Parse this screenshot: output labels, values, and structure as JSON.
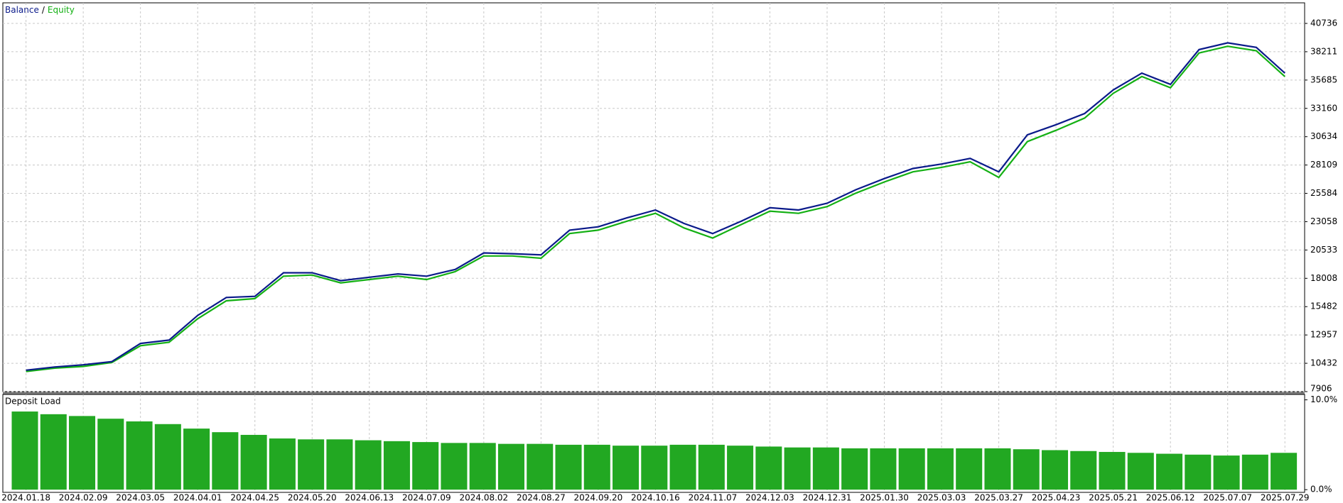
{
  "chart_data": {
    "type": "line",
    "legend_separator": "/",
    "categories": [
      "2024.01.18",
      null,
      "2024.02.09",
      null,
      "2024.03.05",
      null,
      "2024.04.01",
      null,
      "2024.04.25",
      null,
      "2024.05.20",
      null,
      "2024.06.13",
      null,
      "2024.07.09",
      null,
      "2024.08.02",
      null,
      "2024.08.27",
      null,
      "2024.09.20",
      null,
      "2024.10.16",
      null,
      "2024.11.07",
      null,
      "2024.12.03",
      null,
      "2024.12.31",
      null,
      "2025.01.30",
      null,
      "2025.03.03",
      null,
      "2025.03.27",
      null,
      "2025.04.23",
      null,
      "2025.05.21",
      null,
      "2025.06.12",
      null,
      "2025.07.07",
      null,
      "2025.07.29"
    ],
    "series": [
      {
        "name": "Balance",
        "color": "#0a1a8a",
        "values": [
          9815,
          10100,
          10300,
          10580,
          12200,
          12500,
          14700,
          16300,
          16400,
          18500,
          18500,
          17800,
          18100,
          18400,
          18200,
          18800,
          20270,
          20200,
          20100,
          22300,
          22600,
          23400,
          24100,
          22900,
          22000,
          23100,
          24300,
          24100,
          24700,
          25900,
          26900,
          27800,
          28200,
          28700,
          27500,
          30800,
          31700,
          32700,
          34800,
          36300,
          35300,
          38400,
          39000,
          38600,
          36300
        ]
      },
      {
        "name": "Equity",
        "color": "#14b014",
        "values": [
          9700,
          10000,
          10150,
          10500,
          12000,
          12300,
          14400,
          16000,
          16200,
          18200,
          18300,
          17600,
          17900,
          18200,
          17900,
          18600,
          20000,
          20000,
          19800,
          22000,
          22300,
          23100,
          23800,
          22500,
          21600,
          22800,
          24000,
          23800,
          24400,
          25600,
          26600,
          27500,
          27900,
          28400,
          27000,
          30200,
          31200,
          32300,
          34500,
          36000,
          35000,
          38100,
          38700,
          38300,
          36000
        ]
      }
    ],
    "ylim": [
      7906,
      42570
    ],
    "yticks": [
      7906,
      10432,
      12957,
      15482,
      18008,
      20533,
      23058,
      25584,
      28109,
      30634,
      33160,
      35685,
      38211,
      40736
    ],
    "grid": true,
    "load_panel": {
      "type": "bar",
      "title": "Deposit Load",
      "color": "#22a822",
      "values": [
        8.7,
        8.4,
        8.2,
        7.9,
        7.6,
        7.3,
        6.8,
        6.4,
        6.1,
        5.7,
        5.6,
        5.6,
        5.5,
        5.4,
        5.3,
        5.2,
        5.2,
        5.1,
        5.1,
        5.0,
        5.0,
        4.9,
        4.9,
        5.0,
        5.0,
        4.9,
        4.8,
        4.7,
        4.7,
        4.6,
        4.6,
        4.6,
        4.6,
        4.6,
        4.6,
        4.5,
        4.4,
        4.3,
        4.2,
        4.1,
        4.0,
        3.9,
        3.8,
        3.9,
        4.1
      ],
      "ylim": [
        -0.3,
        10.6
      ],
      "yticks": [
        {
          "value": 0,
          "label": "0.0%"
        },
        {
          "value": 10,
          "label": "10.0%"
        }
      ]
    }
  }
}
